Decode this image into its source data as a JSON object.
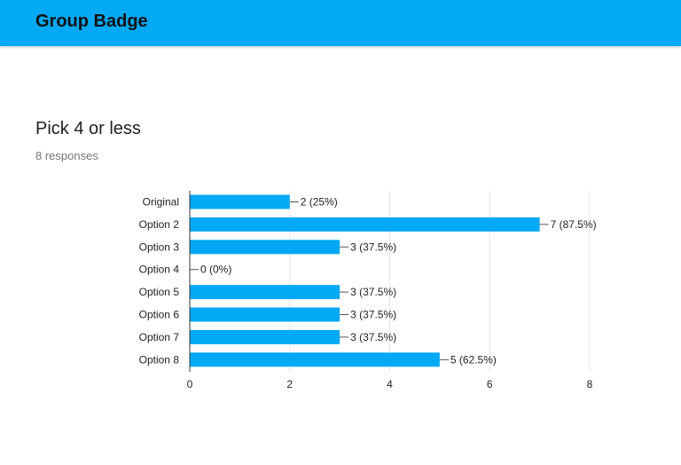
{
  "header": {
    "title": "Group Badge"
  },
  "question": {
    "title": "Pick 4 or less",
    "responses": "8 responses"
  },
  "colors": {
    "accent": "#03a9f4",
    "bar": "#03a9f4"
  },
  "chart_data": {
    "type": "bar",
    "orientation": "horizontal",
    "categories": [
      "Original",
      "Option 2",
      "Option 3",
      "Option 4",
      "Option 5",
      "Option 6",
      "Option 7",
      "Option 8"
    ],
    "values": [
      2,
      7,
      3,
      0,
      3,
      3,
      3,
      5
    ],
    "data_labels": [
      "2 (25%)",
      "7 (87.5%)",
      "3 (37.5%)",
      "0 (0%)",
      "3 (37.5%)",
      "3 (37.5%)",
      "3 (37.5%)",
      "5 (62.5%)"
    ],
    "xlim": [
      0,
      8
    ],
    "xticks": [
      0,
      2,
      4,
      6,
      8
    ],
    "grid": true,
    "legend": "none"
  }
}
